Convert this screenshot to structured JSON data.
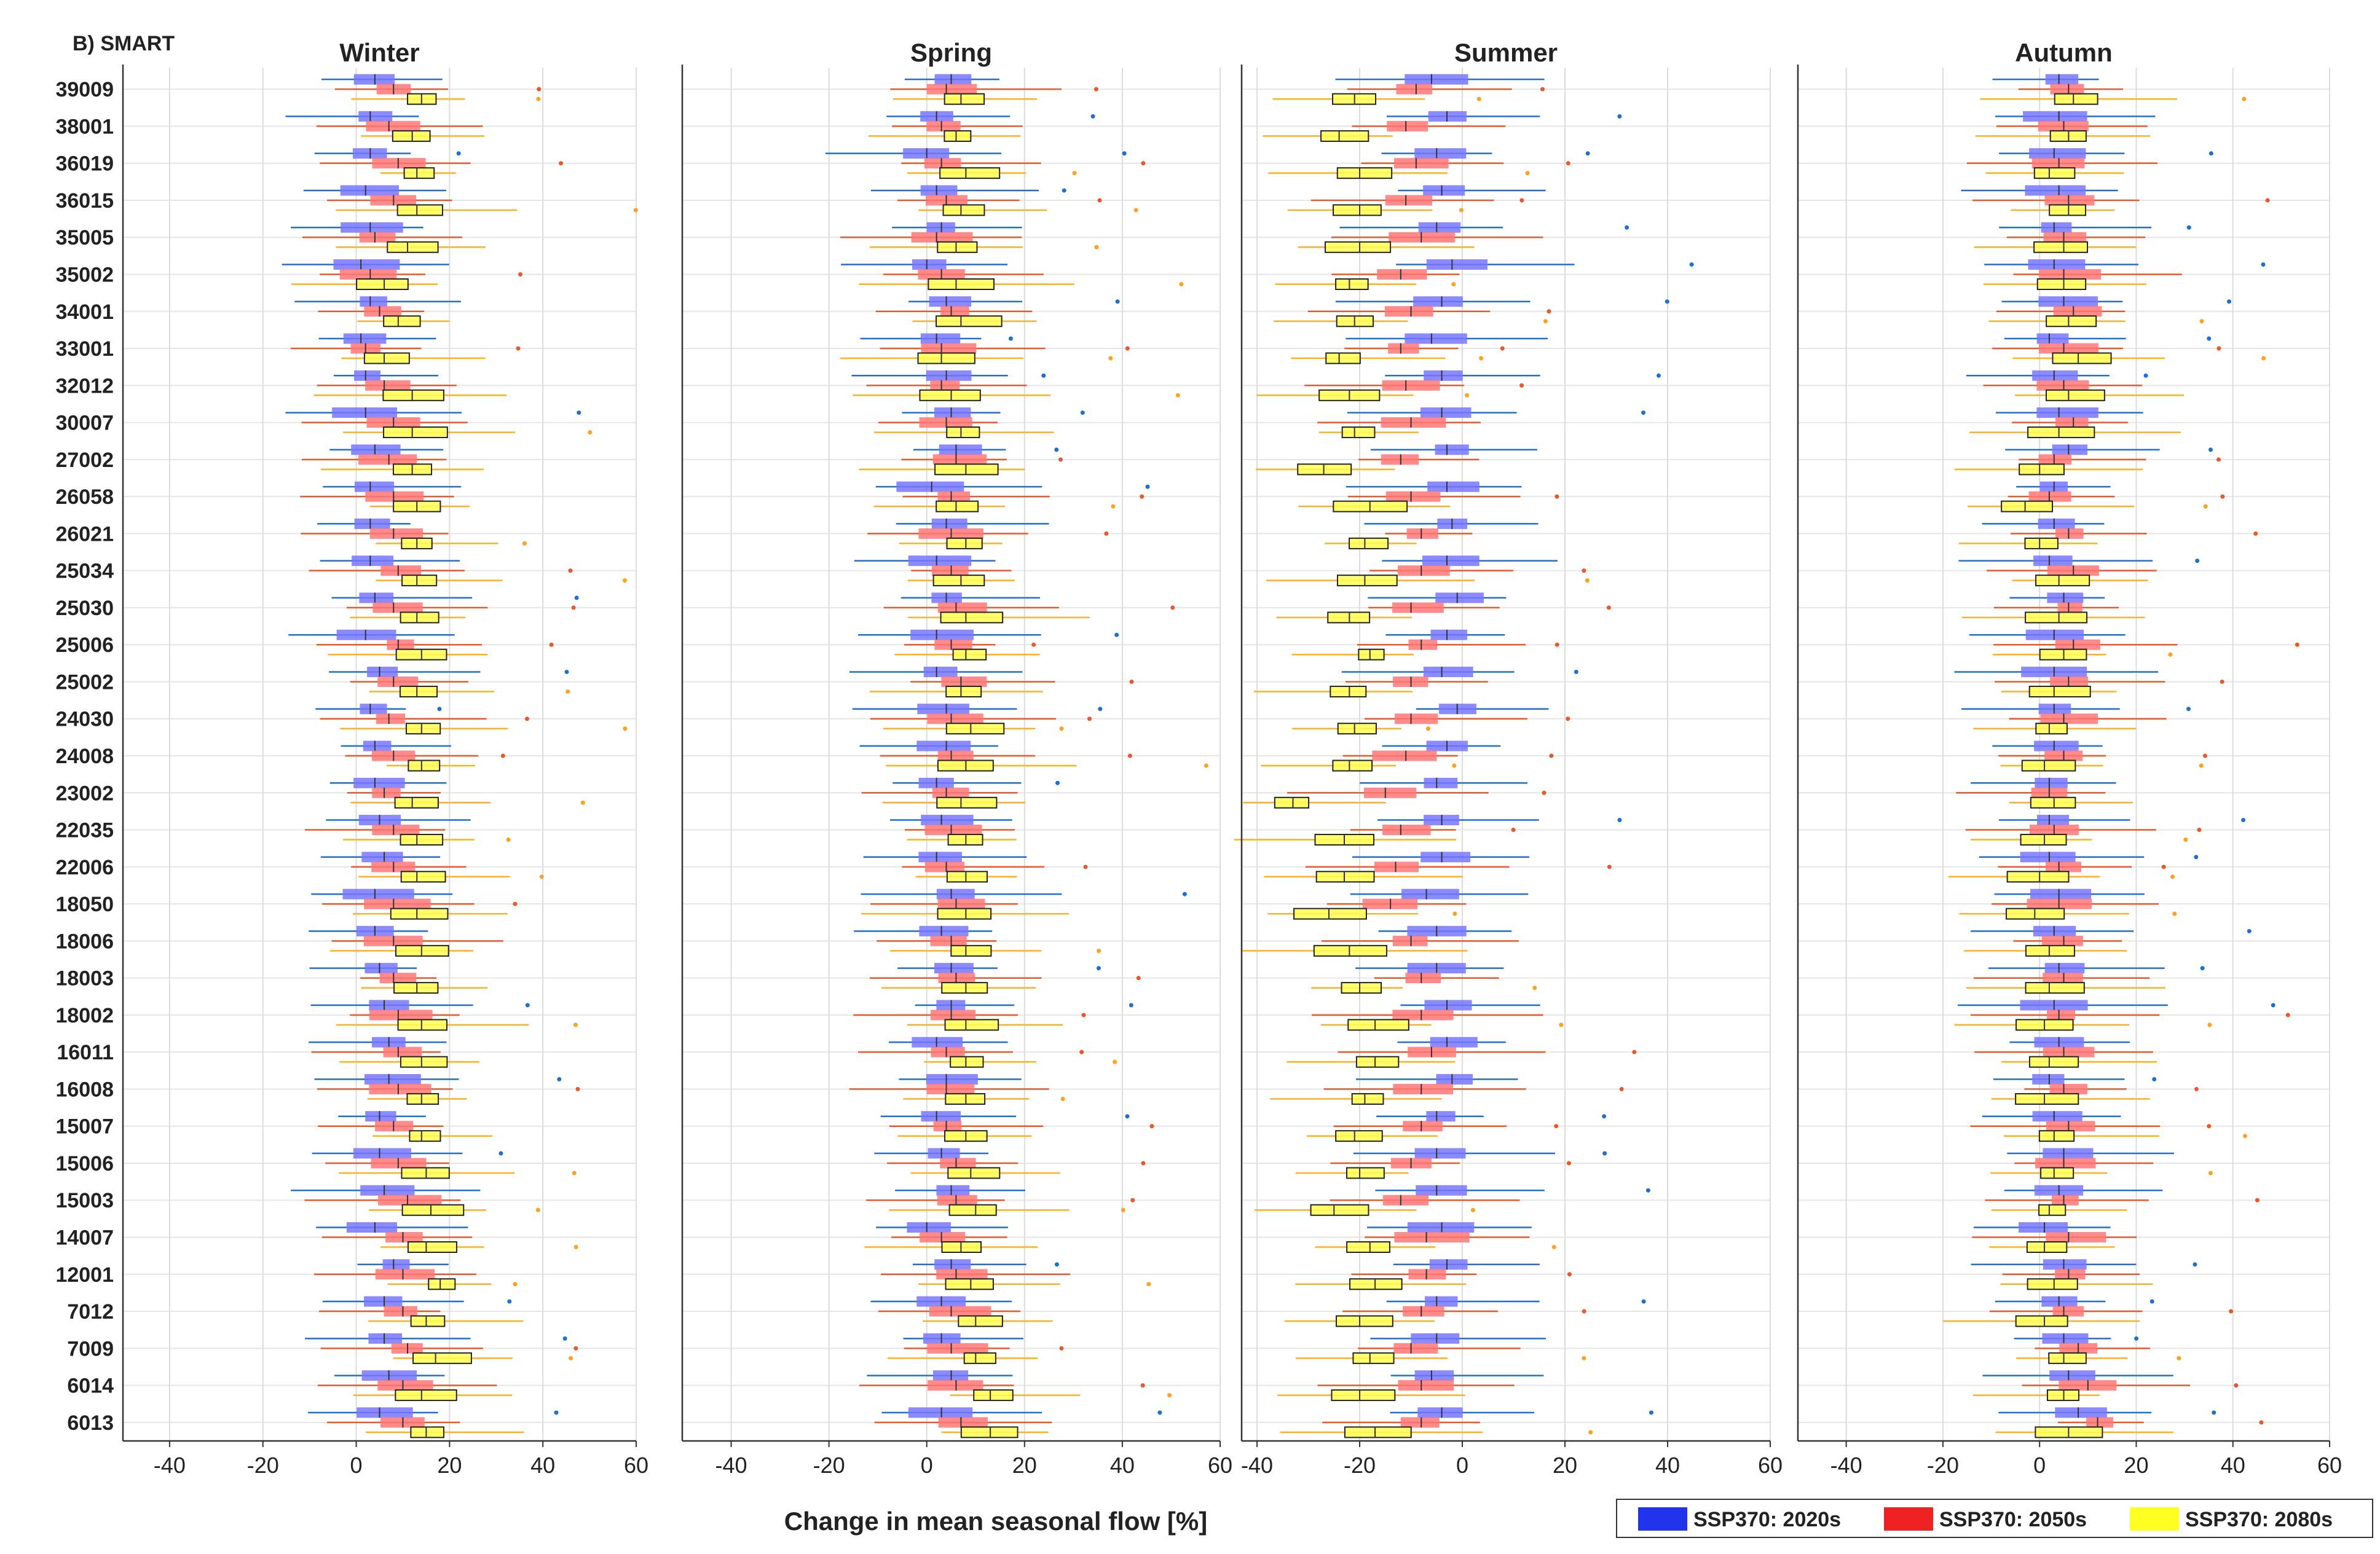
{
  "chart_data": {
    "type": "boxplot",
    "panel_label": "B) SMART",
    "xlabel": "Change in mean seasonal flow [%]",
    "catchments": [
      "39009",
      "38001",
      "36019",
      "36015",
      "35005",
      "35002",
      "34001",
      "33001",
      "32012",
      "30007",
      "27002",
      "26058",
      "26021",
      "25034",
      "25030",
      "25006",
      "25002",
      "24030",
      "24008",
      "23002",
      "22035",
      "22006",
      "18050",
      "18006",
      "18003",
      "18002",
      "16011",
      "16008",
      "15007",
      "15006",
      "15003",
      "14007",
      "12001",
      "7012",
      "7009",
      "6014",
      "6013"
    ],
    "colors": {
      "ssp370_2020s": "#2233ee",
      "ssp370_2050s": "#ee2222",
      "ssp370_2080s": "#ffff22"
    },
    "series": [
      {
        "name": "SSP370: 2020s",
        "key": "2020s"
      },
      {
        "name": "SSP370: 2050s",
        "key": "2050s"
      },
      {
        "name": "SSP370: 2080s",
        "key": "2080s"
      }
    ],
    "panels": [
      {
        "season": "Winter",
        "xlim": [
          -50,
          60
        ],
        "xticks": [
          -40,
          -20,
          0,
          20,
          40,
          60
        ],
        "medians": {
          "2020s": [
            4,
            3,
            3,
            2,
            3,
            1,
            3,
            1,
            2,
            2,
            4,
            3,
            3,
            3,
            4,
            2,
            5,
            3,
            4,
            4,
            5,
            6,
            4,
            4,
            5,
            6,
            7,
            7,
            5,
            5,
            6,
            4,
            8,
            6,
            6,
            7,
            5
          ],
          "2050s": [
            8,
            7,
            9,
            8,
            4,
            3,
            5,
            2,
            6,
            8,
            7,
            8,
            8,
            9,
            8,
            9,
            8,
            7,
            8,
            6,
            8,
            8,
            8,
            8,
            8,
            9,
            9,
            9,
            8,
            9,
            11,
            10,
            10,
            10,
            11,
            10,
            10
          ],
          "2080s": [
            14,
            12,
            13,
            13,
            11,
            6,
            9,
            6,
            12,
            12,
            12,
            13,
            13,
            13,
            13,
            14,
            13,
            14,
            14,
            12,
            13,
            13,
            13,
            14,
            13,
            14,
            14,
            14,
            14,
            15,
            16,
            15,
            18,
            15,
            17,
            14,
            15
          ]
        }
      },
      {
        "season": "Spring",
        "xlim": [
          -50,
          60
        ],
        "xticks": [
          -40,
          -20,
          0,
          20,
          40,
          60
        ],
        "medians": {
          "2020s": [
            5,
            2,
            0,
            2,
            3,
            0,
            4,
            2,
            4,
            5,
            6,
            1,
            4,
            2,
            4,
            2,
            2,
            4,
            4,
            2,
            3,
            2,
            5,
            3,
            5,
            5,
            2,
            4,
            2,
            3,
            5,
            0,
            5,
            3,
            3,
            5,
            3
          ],
          "2050s": [
            4,
            3,
            3,
            4,
            2,
            3,
            5,
            3,
            3,
            4,
            6,
            5,
            5,
            5,
            6,
            5,
            7,
            5,
            5,
            4,
            5,
            4,
            6,
            5,
            6,
            5,
            4,
            4,
            4,
            6,
            6,
            3,
            6,
            5,
            5,
            6,
            7
          ],
          "2080s": [
            7,
            6,
            8,
            7,
            6,
            6,
            7,
            3,
            5,
            7,
            8,
            6,
            8,
            7,
            8,
            8,
            7,
            9,
            8,
            7,
            8,
            8,
            8,
            8,
            8,
            8,
            8,
            8,
            8,
            9,
            10,
            7,
            9,
            10,
            10,
            13,
            13
          ]
        }
      },
      {
        "season": "Summer",
        "xlim": [
          -43,
          60
        ],
        "xticks": [
          -40,
          -20,
          0,
          20,
          40,
          60
        ],
        "medians": {
          "2020s": [
            -6,
            -3,
            -5,
            -4,
            -5,
            -2,
            -4,
            -6,
            -4,
            -4,
            -3,
            -3,
            -2,
            -3,
            -1,
            -3,
            -4,
            -1,
            -3,
            -5,
            -4,
            -4,
            -7,
            -5,
            -5,
            -3,
            -3,
            -2,
            -5,
            -5,
            -5,
            -4,
            -3,
            -5,
            -5,
            -6,
            -4
          ],
          "2050s": [
            -9,
            -11,
            -9,
            -11,
            -8,
            -12,
            -10,
            -12,
            -11,
            -10,
            -12,
            -10,
            -8,
            -8,
            -10,
            -8,
            -10,
            -10,
            -11,
            -15,
            -12,
            -13,
            -14,
            -10,
            -8,
            -8,
            -6,
            -8,
            -8,
            -10,
            -12,
            -7,
            -7,
            -8,
            -10,
            -8,
            -8
          ],
          "2080s": [
            -21,
            -24,
            -20,
            -20,
            -20,
            -22,
            -21,
            -24,
            -22,
            -21,
            -27,
            -18,
            -19,
            -19,
            -22,
            -18,
            -22,
            -21,
            -22,
            -33,
            -23,
            -23,
            -26,
            -22,
            -20,
            -17,
            -17,
            -19,
            -21,
            -20,
            -25,
            -18,
            -17,
            -20,
            -18,
            -20,
            -17
          ]
        }
      },
      {
        "season": "Autumn",
        "xlim": [
          -50,
          60
        ],
        "xticks": [
          -40,
          -20,
          0,
          20,
          40,
          60
        ],
        "medians": {
          "2020s": [
            4,
            4,
            3,
            4,
            3,
            3,
            5,
            2,
            3,
            4,
            6,
            3,
            3,
            2,
            5,
            3,
            3,
            3,
            3,
            2,
            2,
            2,
            4,
            3,
            4,
            3,
            4,
            2,
            3,
            5,
            4,
            1,
            5,
            4,
            5,
            6,
            8
          ],
          "2050s": [
            6,
            5,
            4,
            6,
            5,
            5,
            7,
            5,
            5,
            7,
            3,
            2,
            6,
            7,
            6,
            7,
            6,
            5,
            5,
            2,
            3,
            4,
            4,
            5,
            5,
            4,
            5,
            5,
            6,
            5,
            5,
            6,
            6,
            5,
            8,
            10,
            12
          ],
          "2080s": [
            7,
            6,
            2,
            6,
            5,
            5,
            6,
            8,
            6,
            4,
            0,
            -3,
            0,
            4,
            4,
            5,
            3,
            2,
            1,
            3,
            1,
            0,
            -1,
            2,
            2,
            1,
            2,
            1,
            3,
            3,
            2,
            1,
            3,
            1,
            5,
            5,
            6
          ]
        }
      }
    ]
  },
  "legend": {
    "items": [
      {
        "label": "SSP370: 2020s"
      },
      {
        "label": "SSP370: 2050s"
      },
      {
        "label": "SSP370: 2080s"
      }
    ]
  }
}
